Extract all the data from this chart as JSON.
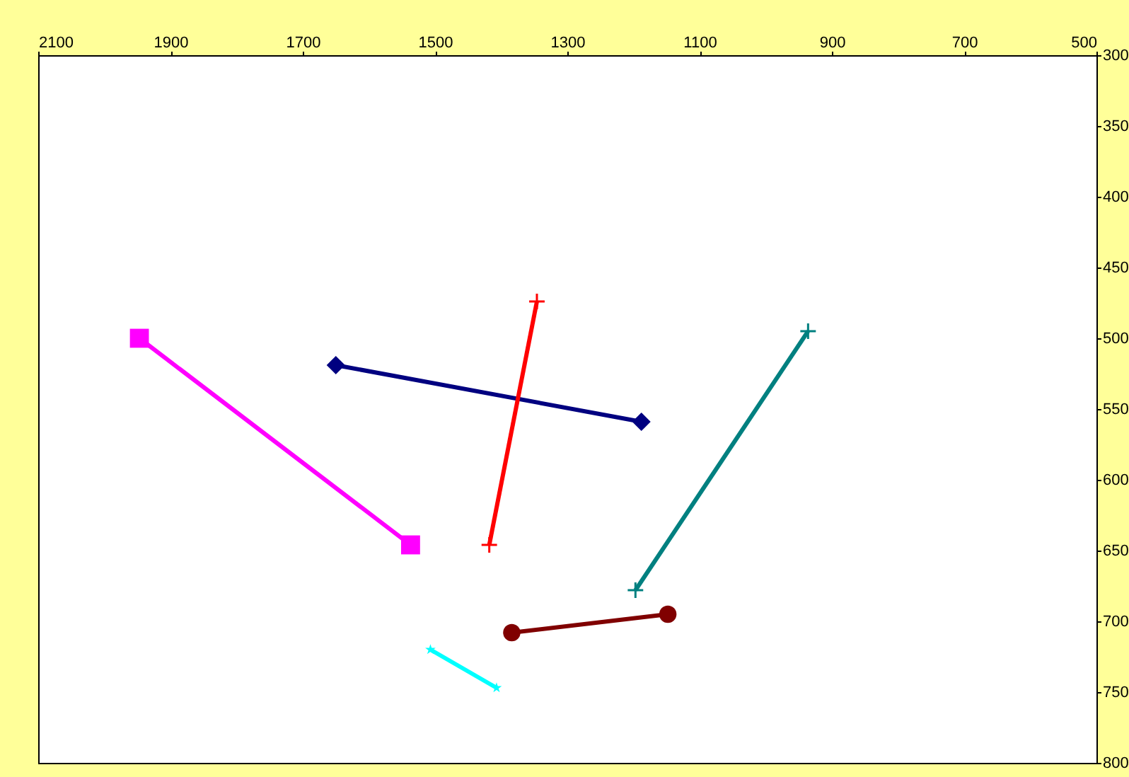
{
  "chart_data": {
    "type": "line",
    "xlim": [
      2100,
      500
    ],
    "xticks": [
      2100,
      1900,
      1700,
      1500,
      1300,
      1100,
      900,
      700,
      500
    ],
    "ylim": [
      800,
      300
    ],
    "yticks": [
      300,
      350,
      400,
      450,
      500,
      550,
      600,
      650,
      700,
      750,
      800
    ],
    "grid": false,
    "series": [
      {
        "color": "#ff00ff",
        "marker": "square",
        "x": [
          1947,
          1537
        ],
        "values": [
          500,
          646
        ]
      },
      {
        "color": "#000080",
        "marker": "diamond",
        "x": [
          1650,
          1188
        ],
        "values": [
          519,
          559
        ]
      },
      {
        "color": "#ff0000",
        "marker": "cross",
        "x": [
          1346,
          1418
        ],
        "values": [
          474,
          646
        ]
      },
      {
        "color": "#008080",
        "marker": "cross",
        "x": [
          936,
          1197
        ],
        "values": [
          495,
          678
        ]
      },
      {
        "color": "#800000",
        "marker": "circle",
        "x": [
          1384,
          1148
        ],
        "values": [
          708,
          695
        ]
      },
      {
        "color": "#00ffff",
        "marker": "star",
        "x": [
          1507,
          1407
        ],
        "values": [
          720,
          747
        ]
      }
    ]
  }
}
